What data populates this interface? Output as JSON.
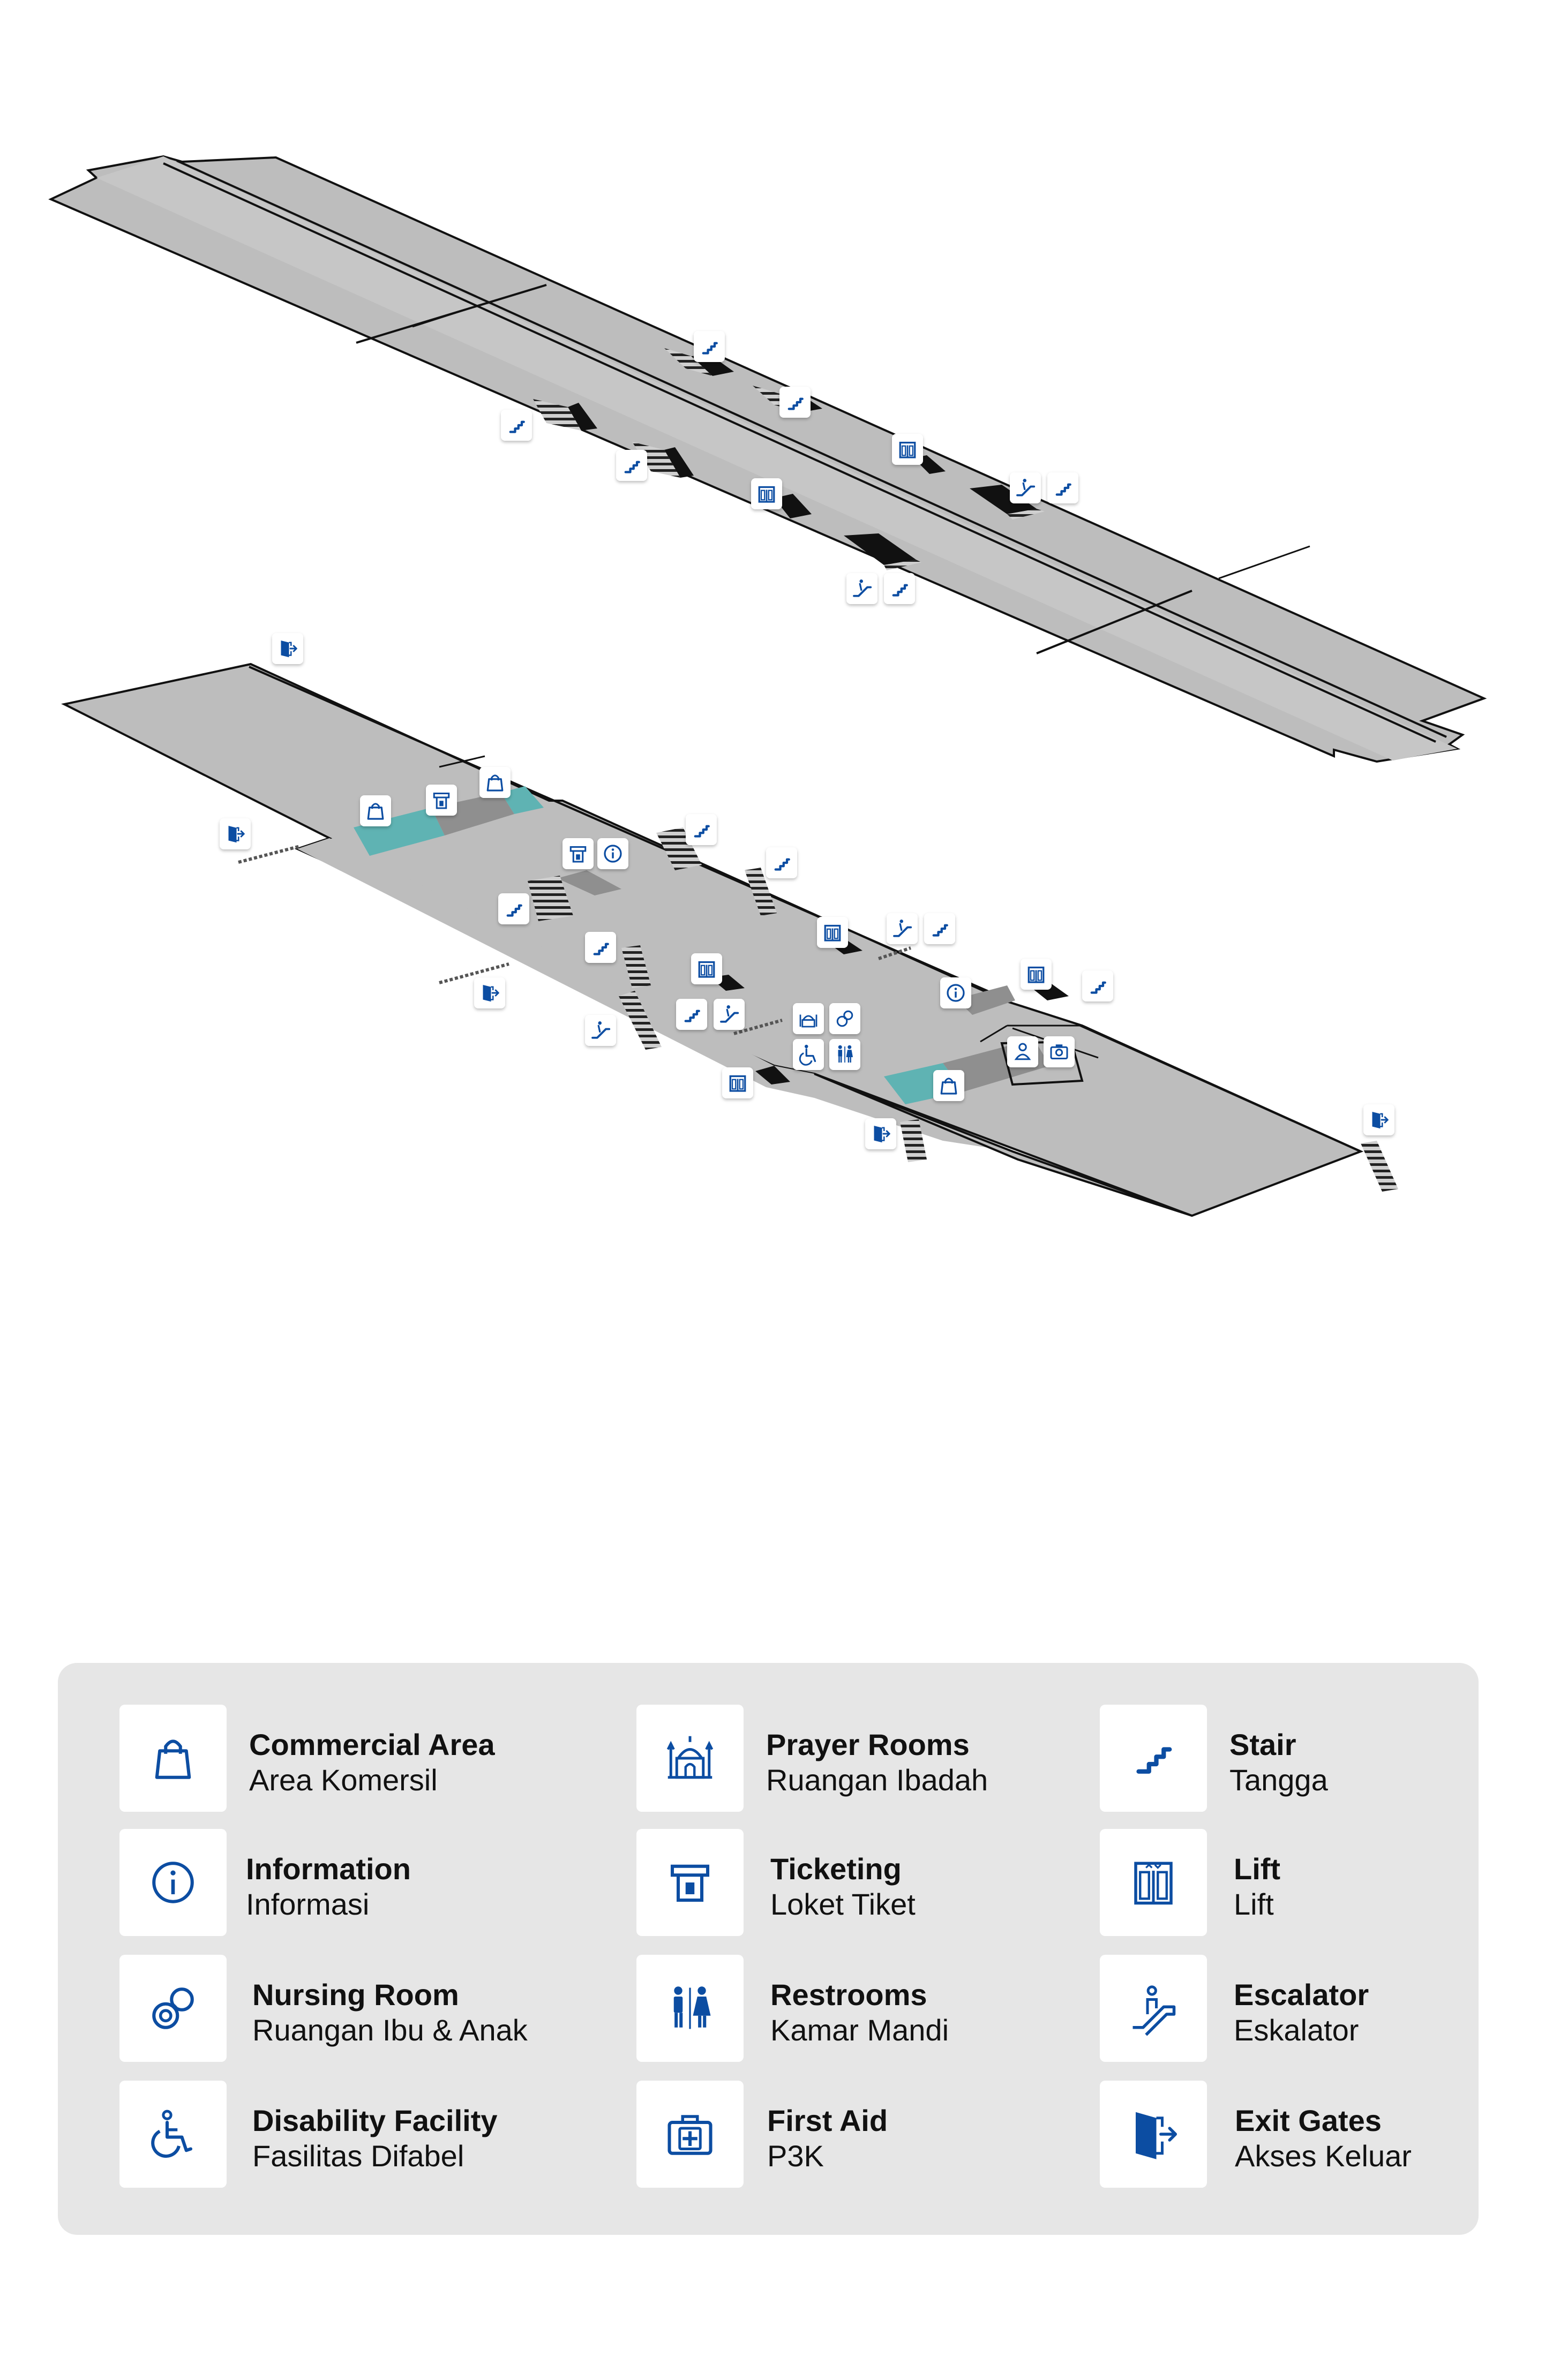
{
  "map": {
    "levels": [
      "upper-concourse",
      "lower-concourse"
    ],
    "colors": {
      "floor": "#bdbdbd",
      "floor_dark": "#a9a9a9",
      "commercial_zone": "#5fb3b3",
      "outline": "#111111",
      "icon": "#0c4da2"
    },
    "upper_markers": [
      {
        "icon": "stair"
      },
      {
        "icon": "stair"
      },
      {
        "icon": "stair"
      },
      {
        "icon": "stair"
      },
      {
        "icon": "lift"
      },
      {
        "icon": "lift"
      },
      {
        "icon": "escalator"
      },
      {
        "icon": "stair"
      },
      {
        "icon": "escalator"
      },
      {
        "icon": "stair"
      }
    ],
    "lower_markers": [
      {
        "icon": "exit"
      },
      {
        "icon": "exit"
      },
      {
        "icon": "exit"
      },
      {
        "icon": "exit"
      },
      {
        "icon": "exit"
      },
      {
        "icon": "commercial"
      },
      {
        "icon": "commercial"
      },
      {
        "icon": "commercial"
      },
      {
        "icon": "ticketing"
      },
      {
        "icon": "ticketing"
      },
      {
        "icon": "information"
      },
      {
        "icon": "information"
      },
      {
        "icon": "stair"
      },
      {
        "icon": "stair"
      },
      {
        "icon": "stair"
      },
      {
        "icon": "stair"
      },
      {
        "icon": "stair"
      },
      {
        "icon": "stair"
      },
      {
        "icon": "stair"
      },
      {
        "icon": "lift"
      },
      {
        "icon": "lift"
      },
      {
        "icon": "lift"
      },
      {
        "icon": "lift"
      },
      {
        "icon": "escalator"
      },
      {
        "icon": "escalator"
      },
      {
        "icon": "escalator"
      },
      {
        "icon": "prayer"
      },
      {
        "icon": "nursing"
      },
      {
        "icon": "disability"
      },
      {
        "icon": "restroom"
      },
      {
        "icon": "first-aid"
      },
      {
        "icon": "camera"
      }
    ]
  },
  "legend": {
    "items": [
      {
        "icon": "commercial-area-icon",
        "en": "Commercial Area",
        "id": "Area Komersil"
      },
      {
        "icon": "prayer-room-icon",
        "en": "Prayer Rooms",
        "id": "Ruangan Ibadah"
      },
      {
        "icon": "stair-icon",
        "en": "Stair",
        "id": "Tangga"
      },
      {
        "icon": "information-icon",
        "en": "Information",
        "id": "Informasi"
      },
      {
        "icon": "ticketing-icon",
        "en": "Ticketing",
        "id": "Loket Tiket"
      },
      {
        "icon": "lift-icon",
        "en": "Lift",
        "id": "Lift"
      },
      {
        "icon": "nursing-room-icon",
        "en": "Nursing Room",
        "id": "Ruangan Ibu & Anak"
      },
      {
        "icon": "restroom-icon",
        "en": "Restrooms",
        "id": "Kamar Mandi"
      },
      {
        "icon": "escalator-icon",
        "en": "Escalator",
        "id": "Eskalator"
      },
      {
        "icon": "disability-icon",
        "en": "Disability Facility",
        "id": "Fasilitas Difabel"
      },
      {
        "icon": "first-aid-icon",
        "en": "First Aid",
        "id": "P3K"
      },
      {
        "icon": "exit-gate-icon",
        "en": "Exit Gates",
        "id": "Akses Keluar"
      }
    ]
  }
}
